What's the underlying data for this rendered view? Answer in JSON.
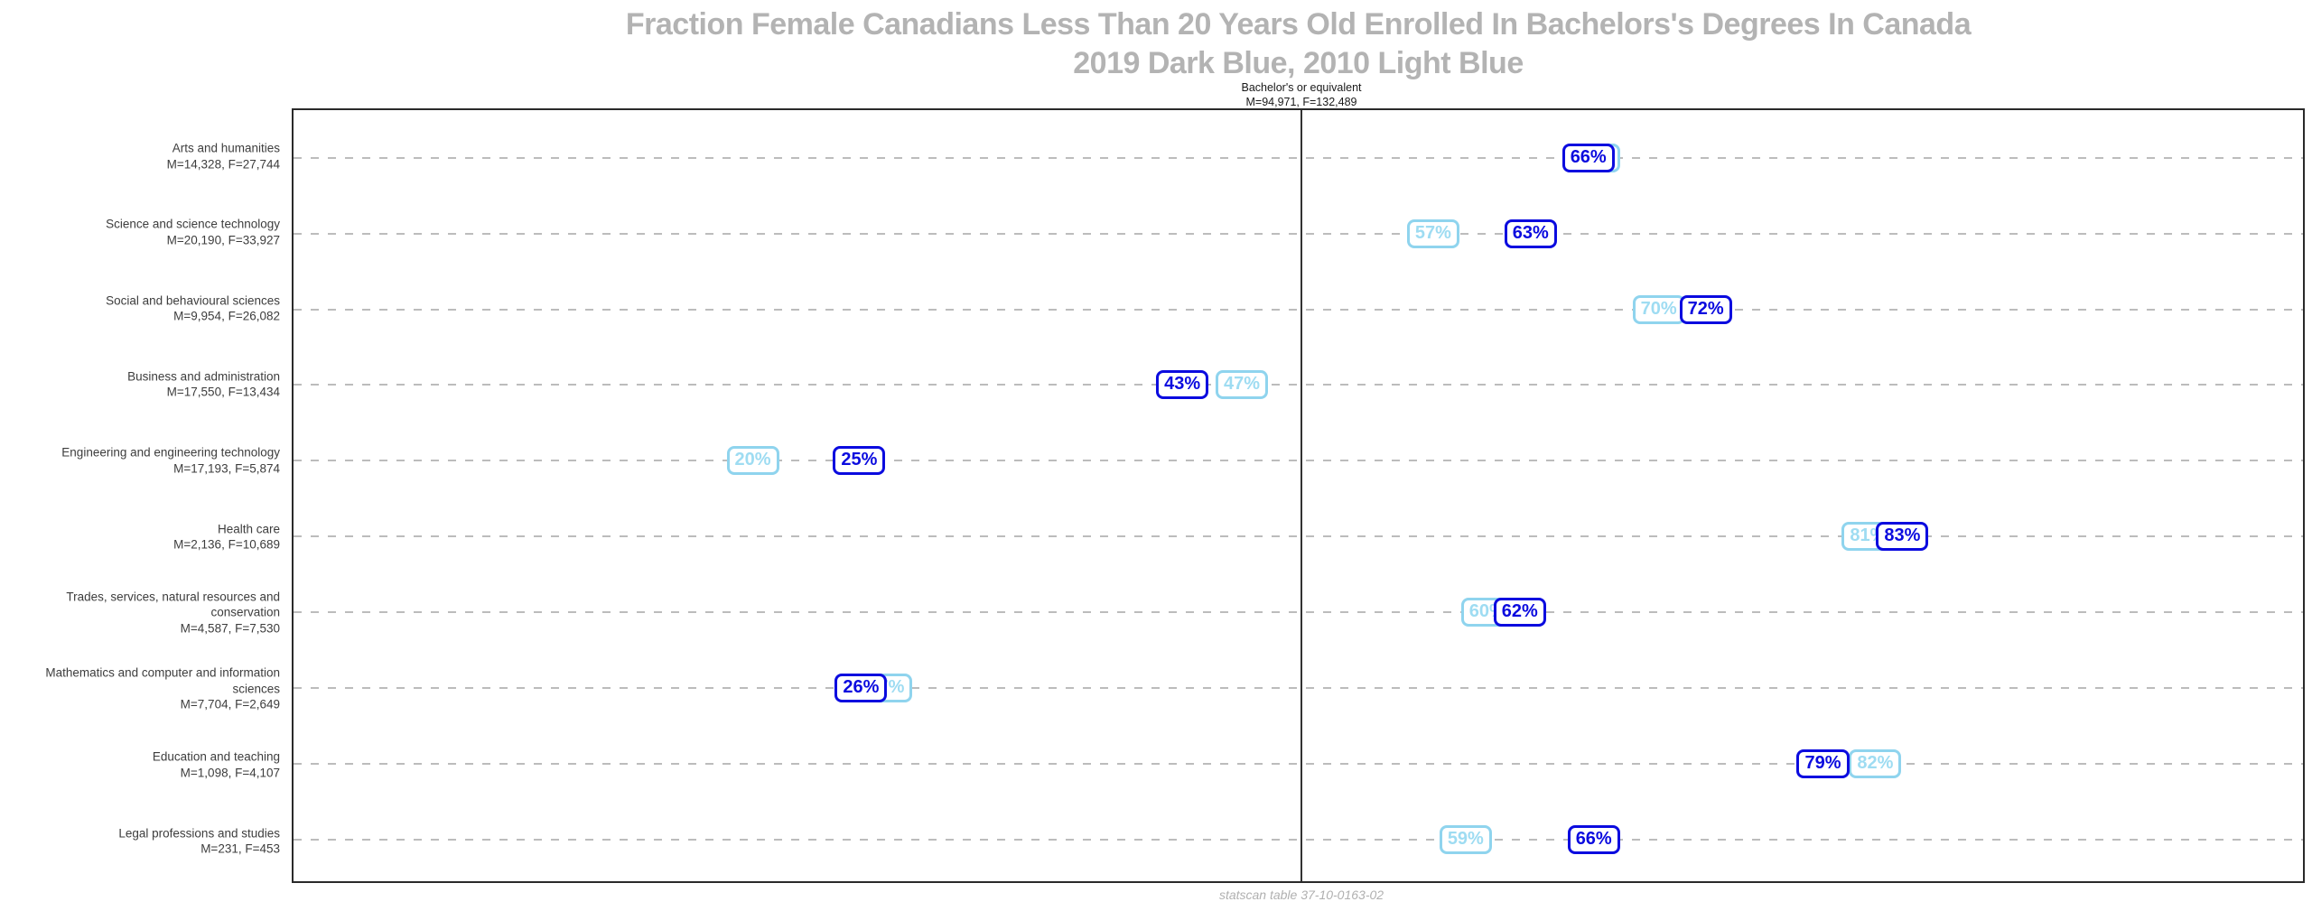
{
  "header": {
    "title_line1": "Fraction Female Canadians Less Than 20 Years Old Enrolled In Bachelors's Degrees In Canada",
    "title_line2": "2019 Dark Blue, 2010 Light Blue"
  },
  "facet": {
    "name": "Bachelor's or equivalent",
    "totals": "M=94,971, F=132,489"
  },
  "caption": "statscan table 37-10-0163-02",
  "colors": {
    "dark_blue": "#0b0bdf",
    "light_blue_border": "#8fd4ee",
    "light_blue_text": "#9edcf2",
    "grid": "#bcbcbc",
    "plot_border": "#2a2a2a",
    "reference_line": "#333333",
    "title_gray": "#b3b3b3",
    "label_gray": "#3d3d3d",
    "caption_gray": "#b0b0b0"
  },
  "chart_data": {
    "type": "scatter",
    "subtype": "labeled-dot-plot-horizontal",
    "title": "Fraction Female Canadians Less Than 20 Years Old Enrolled In Bachelors's Degrees In Canada",
    "subtitle": "2019 Dark Blue, 2010 Light Blue",
    "facet_label": "Bachelor's or equivalent",
    "facet_totals": "M=94,971, F=132,489",
    "xlabel": "",
    "ylabel": "",
    "x_unit": "percent female",
    "xlim": [
      -5.85,
      105.5
    ],
    "reference_line_x": 50,
    "grid": "horizontal-dashed",
    "legend": [
      {
        "name": "2019",
        "style": "dark blue box"
      },
      {
        "name": "2010",
        "style": "light blue box"
      }
    ],
    "categories": [
      "Arts and humanities",
      "Science and science technology",
      "Social and behavioural sciences",
      "Business and administration",
      "Engineering and engineering technology",
      "Health care",
      "Trades, services, natural resources and conservation",
      "Mathematics and computer and information sciences",
      "Education and teaching",
      "Legal professions and studies"
    ],
    "category_counts": [
      "M=14,328, F=27,744",
      "M=20,190, F=33,927",
      "M=9,954, F=26,082",
      "M=17,550, F=13,434",
      "M=17,193, F=5,874",
      "M=2,136, F=10,689",
      "M=4,587, F=7,530",
      "M=7,704, F=2,649",
      "M=1,098, F=4,107",
      "M=231, F=453"
    ],
    "series": [
      {
        "name": "2010",
        "color_key": "light",
        "values": [
          66.2,
          57.3,
          69.8,
          46.7,
          19.6,
          81.4,
          60.3,
          27.0,
          81.8,
          59.1
        ],
        "labels": [
          "66%",
          "57%",
          "70%",
          "47%",
          "20%",
          "81%",
          "60%",
          "27%",
          "82%",
          "59%"
        ]
      },
      {
        "name": "2019",
        "color_key": "dark",
        "values": [
          65.9,
          62.7,
          72.4,
          43.4,
          25.5,
          83.3,
          62.1,
          25.6,
          78.9,
          66.2
        ],
        "labels": [
          "66%",
          "63%",
          "72%",
          "43%",
          "25%",
          "83%",
          "62%",
          "26%",
          "79%",
          "66%"
        ]
      }
    ]
  }
}
